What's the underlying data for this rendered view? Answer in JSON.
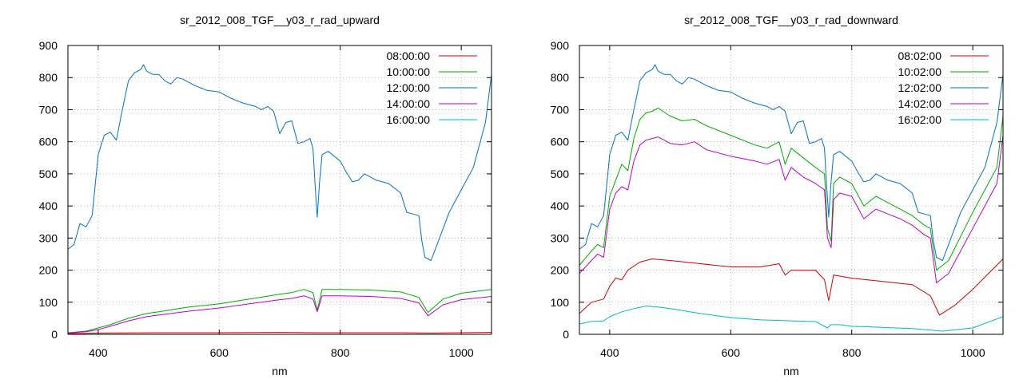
{
  "chart_data": [
    {
      "type": "line",
      "title": "sr_2012_008_TGF__y03_r_rad_upward",
      "xlabel": "nm",
      "ylabel": "",
      "xlim": [
        350,
        1050
      ],
      "ylim": [
        0,
        900
      ],
      "xticks": [
        400,
        600,
        800,
        1000
      ],
      "yticks": [
        0,
        100,
        200,
        300,
        400,
        500,
        600,
        700,
        800,
        900
      ],
      "grid": true,
      "legend_position": "top-right",
      "series": [
        {
          "name": "08:00:00",
          "color": "#cc0000",
          "x": [
            350,
            400,
            500,
            600,
            700,
            760,
            800,
            900,
            950,
            1000,
            1050
          ],
          "y": [
            2,
            4,
            5,
            5,
            6,
            5,
            5,
            5,
            4,
            5,
            6
          ]
        },
        {
          "name": "10:00:00",
          "color": "#00aa00",
          "x": [
            350,
            380,
            400,
            420,
            450,
            480,
            500,
            550,
            600,
            650,
            700,
            720,
            740,
            755,
            762,
            770,
            800,
            850,
            900,
            930,
            945,
            970,
            1000,
            1050
          ],
          "y": [
            5,
            10,
            20,
            30,
            50,
            65,
            70,
            85,
            95,
            110,
            125,
            130,
            140,
            130,
            75,
            140,
            140,
            138,
            132,
            115,
            68,
            110,
            128,
            140
          ]
        },
        {
          "name": "12:00:00",
          "color": "#0070c0",
          "x": [
            350,
            360,
            370,
            380,
            390,
            400,
            410,
            420,
            430,
            440,
            450,
            460,
            470,
            475,
            480,
            490,
            500,
            510,
            520,
            530,
            540,
            560,
            580,
            600,
            620,
            640,
            660,
            670,
            680,
            690,
            695,
            700,
            710,
            720,
            730,
            740,
            750,
            755,
            758,
            762,
            766,
            770,
            780,
            800,
            810,
            820,
            830,
            840,
            850,
            860,
            880,
            900,
            910,
            920,
            930,
            935,
            940,
            950,
            960,
            980,
            1000,
            1020,
            1040,
            1050
          ],
          "y": [
            265,
            280,
            345,
            335,
            370,
            560,
            620,
            630,
            605,
            700,
            790,
            815,
            825,
            840,
            820,
            810,
            810,
            790,
            780,
            800,
            795,
            775,
            760,
            755,
            735,
            720,
            710,
            700,
            710,
            695,
            660,
            625,
            660,
            665,
            595,
            600,
            610,
            580,
            480,
            365,
            480,
            560,
            570,
            540,
            505,
            475,
            480,
            500,
            490,
            480,
            470,
            440,
            380,
            375,
            370,
            290,
            240,
            230,
            280,
            380,
            450,
            520,
            660,
            810
          ]
        },
        {
          "name": "14:00:00",
          "color": "#bb00cc",
          "x": [
            350,
            380,
            400,
            420,
            450,
            480,
            500,
            550,
            600,
            650,
            700,
            720,
            740,
            755,
            762,
            770,
            800,
            850,
            900,
            930,
            945,
            970,
            1000,
            1050
          ],
          "y": [
            4,
            8,
            15,
            25,
            42,
            55,
            60,
            72,
            82,
            95,
            108,
            112,
            120,
            110,
            70,
            120,
            120,
            118,
            112,
            98,
            58,
            92,
            108,
            118
          ]
        },
        {
          "name": "16:00:00",
          "color": "#00bbbb",
          "x": [
            350,
            1050
          ],
          "y": [
            0,
            0
          ]
        }
      ]
    },
    {
      "type": "line",
      "title": "sr_2012_008_TGF__y03_r_rad_downward",
      "xlabel": "nm",
      "ylabel": "",
      "xlim": [
        350,
        1050
      ],
      "ylim": [
        0,
        900
      ],
      "xticks": [
        400,
        600,
        800,
        1000
      ],
      "yticks": [
        0,
        100,
        200,
        300,
        400,
        500,
        600,
        700,
        800,
        900
      ],
      "grid": true,
      "legend_position": "top-right",
      "series": [
        {
          "name": "08:02:00",
          "color": "#cc0000",
          "x": [
            350,
            370,
            390,
            400,
            410,
            420,
            430,
            450,
            470,
            500,
            550,
            600,
            650,
            680,
            690,
            700,
            740,
            755,
            762,
            770,
            800,
            850,
            900,
            930,
            945,
            970,
            1000,
            1050
          ],
          "y": [
            65,
            100,
            110,
            150,
            175,
            170,
            200,
            225,
            235,
            230,
            220,
            210,
            210,
            220,
            185,
            200,
            200,
            170,
            105,
            185,
            175,
            165,
            155,
            120,
            60,
            90,
            140,
            235
          ]
        },
        {
          "name": "10:02:00",
          "color": "#00aa00",
          "x": [
            350,
            370,
            380,
            390,
            400,
            410,
            420,
            430,
            440,
            450,
            460,
            470,
            480,
            500,
            520,
            540,
            560,
            600,
            640,
            660,
            680,
            690,
            700,
            720,
            740,
            755,
            760,
            766,
            770,
            780,
            800,
            820,
            840,
            860,
            880,
            900,
            920,
            930,
            940,
            960,
            1000,
            1040,
            1050
          ],
          "y": [
            215,
            260,
            280,
            270,
            430,
            480,
            530,
            510,
            610,
            670,
            690,
            695,
            705,
            680,
            665,
            670,
            650,
            620,
            590,
            580,
            600,
            530,
            580,
            550,
            520,
            500,
            330,
            290,
            470,
            490,
            470,
            400,
            430,
            410,
            390,
            370,
            340,
            330,
            200,
            230,
            380,
            520,
            680
          ]
        },
        {
          "name": "12:02:00",
          "color": "#0070c0",
          "x": [
            350,
            360,
            370,
            380,
            390,
            400,
            410,
            420,
            430,
            440,
            450,
            460,
            470,
            475,
            480,
            490,
            500,
            510,
            520,
            530,
            540,
            560,
            580,
            600,
            620,
            640,
            660,
            670,
            680,
            690,
            695,
            700,
            710,
            720,
            730,
            740,
            750,
            755,
            758,
            762,
            766,
            770,
            780,
            800,
            810,
            820,
            830,
            840,
            850,
            860,
            880,
            900,
            910,
            920,
            930,
            935,
            940,
            950,
            960,
            980,
            1000,
            1020,
            1040,
            1050
          ],
          "y": [
            265,
            280,
            345,
            335,
            370,
            560,
            620,
            630,
            605,
            700,
            790,
            815,
            825,
            840,
            820,
            810,
            810,
            790,
            780,
            800,
            795,
            775,
            760,
            755,
            735,
            720,
            710,
            700,
            710,
            695,
            660,
            625,
            660,
            665,
            595,
            600,
            610,
            580,
            480,
            365,
            480,
            560,
            570,
            540,
            505,
            475,
            480,
            500,
            490,
            480,
            470,
            440,
            380,
            375,
            370,
            290,
            240,
            230,
            280,
            380,
            450,
            520,
            660,
            810
          ]
        },
        {
          "name": "14:02:00",
          "color": "#bb00cc",
          "x": [
            350,
            370,
            380,
            390,
            400,
            410,
            420,
            430,
            440,
            450,
            460,
            470,
            480,
            500,
            520,
            540,
            560,
            600,
            640,
            660,
            680,
            690,
            700,
            720,
            740,
            755,
            760,
            766,
            770,
            780,
            800,
            820,
            840,
            860,
            880,
            900,
            920,
            930,
            940,
            960,
            1000,
            1040,
            1050
          ],
          "y": [
            190,
            230,
            250,
            240,
            390,
            440,
            460,
            450,
            540,
            590,
            605,
            610,
            615,
            595,
            590,
            600,
            575,
            555,
            540,
            530,
            545,
            480,
            520,
            490,
            470,
            450,
            300,
            270,
            420,
            440,
            430,
            360,
            390,
            375,
            360,
            340,
            310,
            300,
            160,
            190,
            330,
            470,
            620
          ]
        },
        {
          "name": "16:02:00",
          "color": "#00bbbb",
          "x": [
            350,
            370,
            390,
            400,
            420,
            440,
            460,
            480,
            500,
            550,
            600,
            650,
            700,
            740,
            760,
            765,
            780,
            800,
            850,
            900,
            950,
            1000,
            1050
          ],
          "y": [
            32,
            40,
            42,
            55,
            70,
            80,
            88,
            85,
            80,
            65,
            52,
            45,
            42,
            40,
            20,
            30,
            30,
            25,
            22,
            18,
            10,
            20,
            55
          ]
        }
      ]
    }
  ]
}
